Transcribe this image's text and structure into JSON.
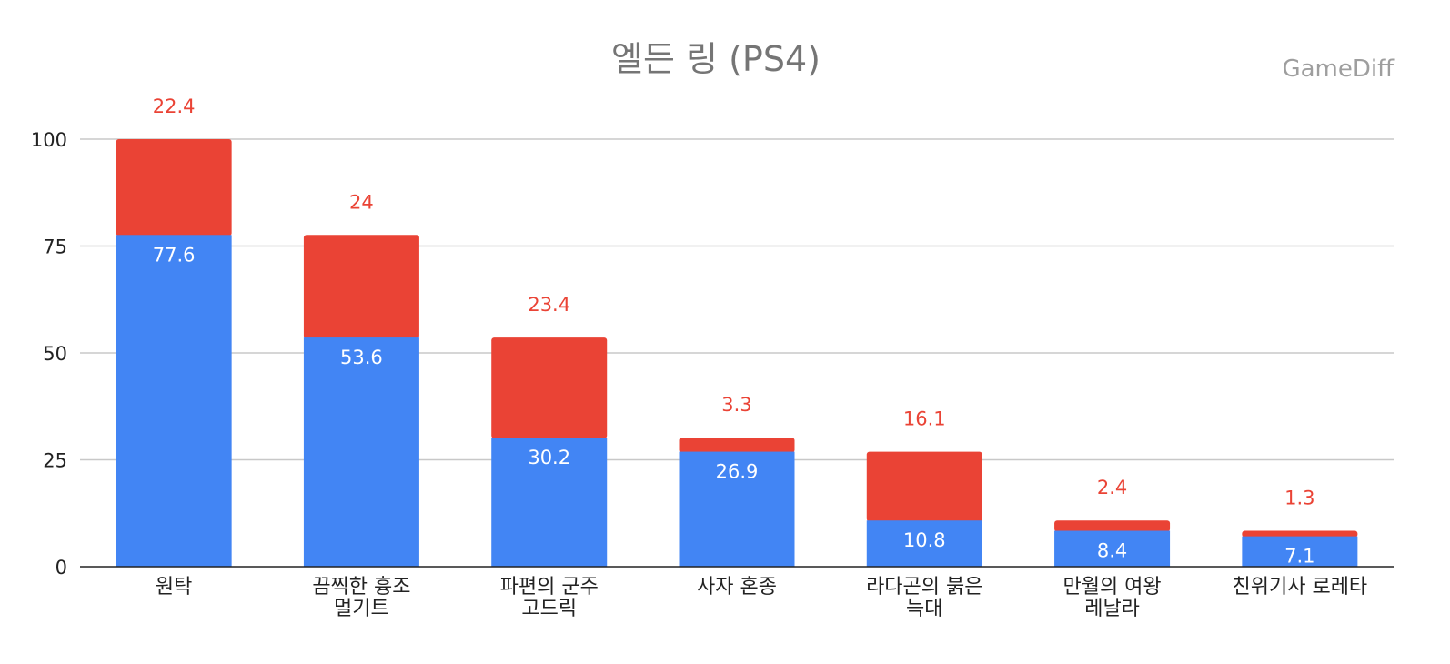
{
  "chart_data": {
    "type": "bar",
    "stacked": true,
    "title": "엘든 링 (PS4)",
    "watermark": "GameDiff",
    "categories": [
      [
        "원탁"
      ],
      [
        "끔찍한 흉조",
        "멀기트"
      ],
      [
        "파편의 군주",
        "고드릭"
      ],
      [
        "사자 혼종"
      ],
      [
        "라다곤의 붉은",
        "늑대"
      ],
      [
        "만월의 여왕",
        "레날라"
      ],
      [
        "친위기사 로레타"
      ]
    ],
    "series": [
      {
        "color": "#4285f4",
        "values": [
          77.6,
          53.6,
          30.2,
          26.9,
          10.8,
          8.4,
          7.1
        ]
      },
      {
        "color": "#ea4335",
        "values": [
          22.4,
          24,
          23.4,
          3.3,
          16.1,
          2.4,
          1.3
        ]
      }
    ],
    "yticks": [
      0,
      25,
      50,
      75,
      100
    ],
    "ylim": [
      0,
      100
    ],
    "grid": true,
    "legend": "none"
  }
}
